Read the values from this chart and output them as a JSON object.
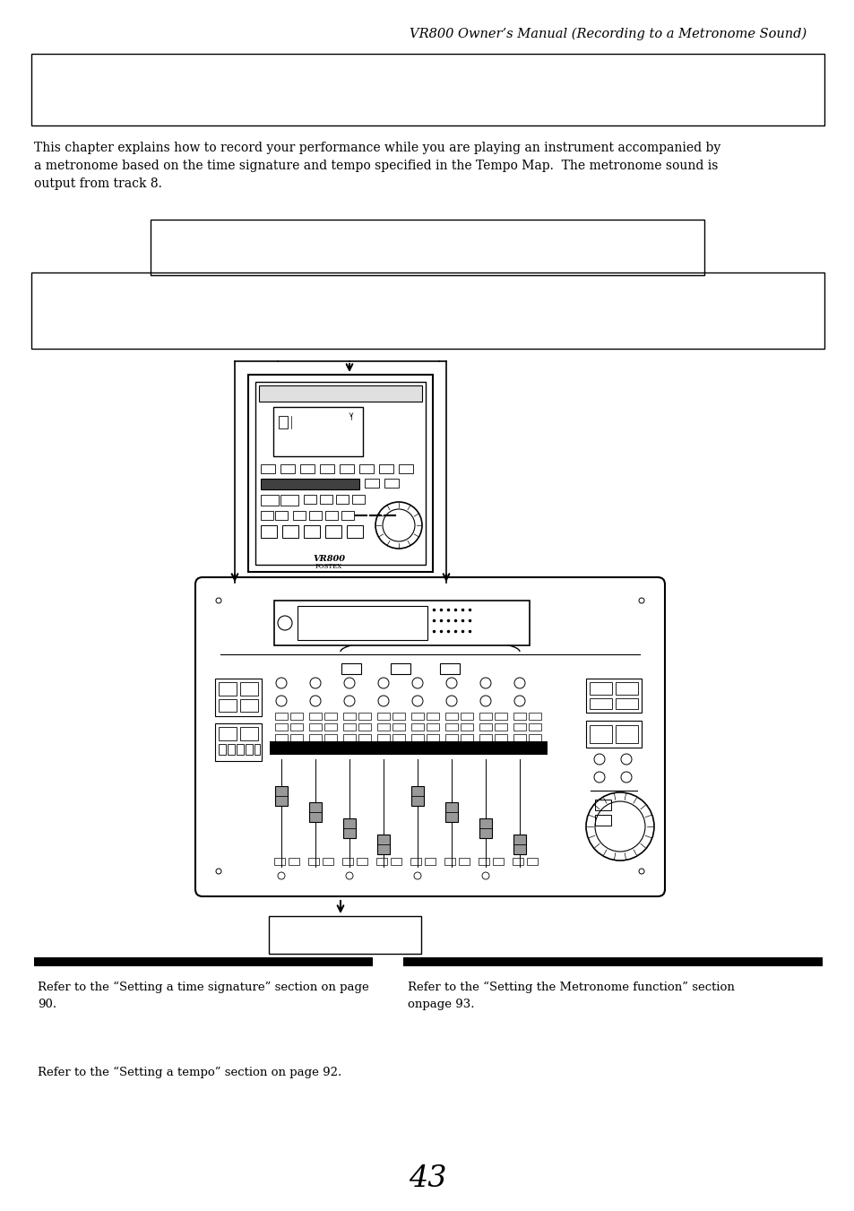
{
  "header_text": "VR800 Owner’s Manual (Recording to a Metronome Sound)",
  "body_text": "This chapter explains how to record your performance while you are playing an instrument accompanied by\na metronome based on the time signature and tempo specified in the Tempo Map.  The metronome sound is\noutput from track 8.",
  "ref_text_left1": "Refer to the “Setting a time signature” section on page\n90.",
  "ref_text_right1": "Refer to the “Setting the Metronome function” section\nonpage 93.",
  "ref_text_left2": "Refer to the “Setting a tempo” section on page 92.",
  "page_number": "43",
  "bg_color": "#ffffff",
  "text_color": "#000000"
}
